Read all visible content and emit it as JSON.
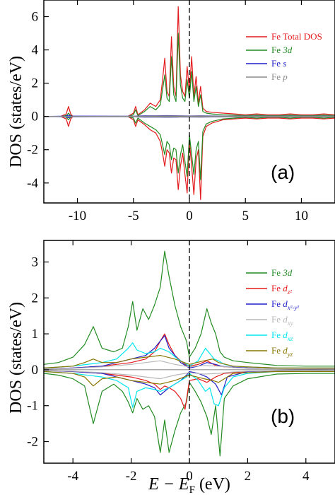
{
  "chart_data": [
    {
      "type": "line",
      "panel_label": "(a)",
      "ylabel": "DOS (states/eV)",
      "xlim": [
        -13,
        13
      ],
      "ylim": [
        -5.2,
        7.0
      ],
      "xticks": [
        -10,
        -5,
        0,
        5,
        10
      ],
      "xtick_labels": [
        "-10",
        "-5",
        "0",
        "5",
        "10"
      ],
      "yticks": [
        -4,
        -2,
        0,
        2,
        4,
        6
      ],
      "ytick_labels": [
        "-4",
        "-2",
        "0",
        "2",
        "4",
        "6"
      ],
      "fermi_line": 0,
      "legend_position": "top-right",
      "legend": [
        {
          "label": "Fe Total DOS",
          "color": "#e41a1c"
        },
        {
          "label_main": "Fe ",
          "label_italic": "3d",
          "color": "#228b22"
        },
        {
          "label_main": "Fe ",
          "label_italic": "s",
          "color": "#1f1fc8"
        },
        {
          "label_main": "Fe ",
          "label_italic": "p",
          "color": "#8c8c8c"
        }
      ],
      "series": [
        {
          "name": "Fe Total DOS",
          "color": "#e41a1c",
          "x": [
            -13,
            -11.5,
            -11.0,
            -10.8,
            -10.6,
            -10.4,
            -5.5,
            -5.0,
            -4.8,
            -4.6,
            -4.0,
            -3.5,
            -3.0,
            -2.6,
            -2.4,
            -2.2,
            -2.0,
            -1.8,
            -1.6,
            -1.4,
            -1.2,
            -1.0,
            -0.8,
            -0.6,
            -0.4,
            -0.2,
            0.0,
            0.2,
            0.4,
            0.6,
            0.8,
            1.0,
            1.2,
            1.5,
            2.0,
            3.0,
            4.0,
            5.0,
            6.0,
            7.0,
            8.0,
            9.0,
            10.0,
            11.0,
            12.0,
            13.0
          ],
          "y_up": [
            0,
            0,
            0.15,
            0.6,
            0.15,
            0,
            0,
            0.2,
            0.6,
            0.1,
            0.4,
            0.8,
            0.6,
            1.0,
            2.2,
            3.5,
            1.5,
            1.2,
            4.8,
            1.8,
            1.2,
            6.6,
            2.5,
            1.5,
            1.2,
            3.0,
            1.5,
            3.6,
            1.2,
            2.4,
            0.8,
            1.8,
            0.5,
            0.3,
            0.25,
            0.2,
            0.15,
            0.1,
            0.15,
            0.1,
            0.1,
            0.15,
            0.1,
            0.1,
            0.15,
            0.1
          ],
          "y_down": [
            0,
            0,
            -0.15,
            -0.6,
            -0.15,
            0,
            0,
            -0.2,
            -0.6,
            -0.2,
            -0.5,
            -0.8,
            -1.0,
            -1.5,
            -2.2,
            -3.0,
            -2.0,
            -2.2,
            -3.4,
            -2.5,
            -2.6,
            -4.4,
            -3.0,
            -2.2,
            -3.5,
            -4.6,
            -1.5,
            -3.0,
            -4.7,
            -2.6,
            -2.0,
            -5.0,
            -1.2,
            -0.6,
            -0.4,
            -0.2,
            -0.15,
            -0.1,
            -0.15,
            -0.1,
            -0.1,
            -0.15,
            -0.1,
            -0.1,
            -0.15,
            -0.1
          ]
        },
        {
          "name_main": "Fe ",
          "name_italic": "3d",
          "color": "#228b22",
          "x": [
            -13,
            -11.5,
            -11.0,
            -10.8,
            -10.6,
            -10.4,
            -5.5,
            -5.0,
            -4.8,
            -4.6,
            -4.0,
            -3.5,
            -3.0,
            -2.6,
            -2.4,
            -2.2,
            -2.0,
            -1.8,
            -1.6,
            -1.4,
            -1.2,
            -1.0,
            -0.8,
            -0.6,
            -0.4,
            -0.2,
            0.0,
            0.2,
            0.4,
            0.6,
            0.8,
            1.0,
            1.2,
            1.5,
            2.0,
            3.0,
            4.0,
            5.0,
            6.0,
            7.0,
            8.0,
            9.0,
            10.0,
            11.0,
            12.0,
            13.0
          ],
          "y_up": [
            0,
            0,
            0.05,
            0.2,
            0.05,
            0,
            0,
            0.1,
            0.4,
            0.05,
            0.3,
            0.6,
            0.4,
            0.7,
            1.6,
            2.5,
            1.1,
            0.9,
            3.6,
            1.3,
            0.9,
            5.0,
            1.9,
            1.1,
            0.9,
            2.2,
            1.1,
            2.7,
            0.9,
            1.8,
            0.6,
            1.3,
            0.3,
            0.2,
            0.15,
            0.1,
            0.08,
            0.05,
            0.08,
            0.05,
            0.05,
            0.08,
            0.05,
            0.05,
            0.08,
            0.05
          ],
          "y_down": [
            0,
            0,
            -0.05,
            -0.2,
            -0.05,
            0,
            0,
            -0.1,
            -0.4,
            -0.1,
            -0.4,
            -0.6,
            -0.8,
            -1.1,
            -1.7,
            -2.3,
            -1.5,
            -1.7,
            -2.6,
            -1.9,
            -2.0,
            -3.4,
            -2.3,
            -1.7,
            -2.7,
            -3.6,
            -1.1,
            -2.3,
            -3.5,
            -2.0,
            -1.5,
            -3.8,
            -0.9,
            -0.45,
            -0.3,
            -0.15,
            -0.1,
            -0.05,
            -0.1,
            -0.05,
            -0.05,
            -0.1,
            -0.05,
            -0.05,
            -0.1,
            -0.05
          ]
        },
        {
          "name_main": "Fe ",
          "name_italic": "s",
          "color": "#1f1fc8",
          "x": [
            -13,
            -11.0,
            -10.8,
            -10.6,
            -5.0,
            -4.5,
            -4.0,
            -3.0,
            -2.0,
            -1.0,
            0.0,
            1.0,
            2.0,
            4.0,
            8.0,
            13.0
          ],
          "y_up": [
            0,
            0.02,
            0.08,
            0.02,
            0.01,
            0.03,
            0.04,
            0.04,
            0.05,
            0.04,
            0.03,
            0.04,
            0.03,
            0.02,
            0.02,
            0.02
          ],
          "y_down": [
            0,
            -0.02,
            -0.08,
            -0.02,
            -0.01,
            -0.03,
            -0.04,
            -0.04,
            -0.05,
            -0.04,
            -0.03,
            -0.04,
            -0.03,
            -0.02,
            -0.02,
            -0.02
          ]
        },
        {
          "name_main": "Fe ",
          "name_italic": "p",
          "color": "#8c8c8c",
          "x": [
            -13,
            -5.0,
            -4.0,
            -3.0,
            -2.0,
            -1.0,
            0.0,
            1.0,
            2.0,
            4.0,
            8.0,
            13.0
          ],
          "y_up": [
            0,
            0.01,
            0.02,
            0.03,
            0.03,
            0.03,
            0.02,
            0.03,
            0.02,
            0.02,
            0.02,
            0.02
          ],
          "y_down": [
            0,
            -0.01,
            -0.02,
            -0.03,
            -0.03,
            -0.03,
            -0.02,
            -0.03,
            -0.02,
            -0.02,
            -0.02,
            -0.02
          ]
        }
      ]
    },
    {
      "type": "line",
      "panel_label": "(b)",
      "ylabel": "DOS (states/eV)",
      "xlabel_main": "E − E",
      "xlabel_sub": "F",
      "xlabel_unit": " (eV)",
      "xlim": [
        -5,
        5
      ],
      "ylim": [
        -2.6,
        3.6
      ],
      "xticks": [
        -4,
        -2,
        0,
        2,
        4
      ],
      "xtick_labels": [
        "-4",
        "-2",
        "0",
        "2",
        "4"
      ],
      "yticks": [
        -2,
        -1,
        0,
        1,
        2,
        3
      ],
      "ytick_labels": [
        "-2",
        "-1",
        "0",
        "1",
        "2",
        "3"
      ],
      "fermi_line": 0,
      "legend_position": "top-right",
      "legend": [
        {
          "label_main": "Fe ",
          "label_italic": "3d",
          "color": "#228b22"
        },
        {
          "label_main": "Fe ",
          "label_italic": "d",
          "label_sub": "z²",
          "color": "#e41a1c"
        },
        {
          "label_main": "Fe ",
          "label_italic": "d",
          "label_sub": "x²-y²",
          "color": "#1f1fc8"
        },
        {
          "label_main": "Fe ",
          "label_italic": "d",
          "label_sub": "xy",
          "color": "#b8b8b8"
        },
        {
          "label_main": "Fe ",
          "label_italic": "d",
          "label_sub": "xz",
          "color": "#00e5ee"
        },
        {
          "label_main": "Fe ",
          "label_italic": "d",
          "label_sub": "yz",
          "color": "#8b7500"
        }
      ],
      "series": [
        {
          "name_main": "Fe ",
          "name_italic": "3d",
          "color": "#228b22",
          "x": [
            -5.0,
            -4.5,
            -4.0,
            -3.6,
            -3.3,
            -3.0,
            -2.6,
            -2.3,
            -2.1,
            -1.95,
            -1.8,
            -1.6,
            -1.4,
            -1.2,
            -1.0,
            -0.85,
            -0.7,
            -0.5,
            -0.3,
            -0.1,
            0.0,
            0.2,
            0.4,
            0.6,
            0.75,
            0.9,
            1.05,
            1.2,
            1.5,
            2.0,
            3.0,
            4.0,
            5.0
          ],
          "y_up": [
            0.15,
            0.2,
            0.35,
            0.7,
            1.2,
            0.6,
            0.5,
            0.6,
            1.2,
            1.9,
            1.1,
            1.7,
            1.4,
            1.8,
            2.3,
            3.3,
            2.6,
            1.8,
            1.2,
            0.8,
            0.35,
            0.6,
            1.0,
            1.7,
            1.3,
            1.0,
            0.5,
            0.35,
            0.25,
            0.2,
            0.12,
            0.1,
            0.1
          ],
          "y_down": [
            -0.1,
            -0.15,
            -0.25,
            -0.45,
            -1.5,
            -0.6,
            -0.4,
            -0.6,
            -0.9,
            -1.2,
            -0.8,
            -1.1,
            -1.0,
            -1.3,
            -2.3,
            -1.4,
            -2.3,
            -1.7,
            -1.2,
            -0.9,
            -0.35,
            -0.6,
            -0.9,
            -1.3,
            -1.8,
            -1.0,
            -2.4,
            -0.8,
            -0.45,
            -0.25,
            -0.12,
            -0.1,
            -0.1
          ]
        },
        {
          "name_main": "Fe ",
          "name_italic": "d",
          "name_sub": "z²",
          "color": "#e41a1c",
          "x": [
            -5.0,
            -4.0,
            -3.0,
            -2.5,
            -2.0,
            -1.5,
            -1.2,
            -1.0,
            -0.85,
            -0.7,
            -0.5,
            -0.3,
            -0.15,
            0.0,
            0.3,
            0.6,
            0.9,
            1.2,
            2.0,
            3.0,
            5.0
          ],
          "y_up": [
            0.02,
            0.05,
            0.1,
            0.15,
            0.2,
            0.3,
            0.5,
            0.8,
            1.0,
            0.7,
            0.4,
            0.25,
            0.15,
            0.1,
            0.15,
            0.25,
            0.12,
            0.08,
            0.05,
            0.03,
            0.02
          ],
          "y_down": [
            -0.02,
            -0.05,
            -0.1,
            -0.15,
            -0.2,
            -0.3,
            -0.4,
            -0.55,
            -0.45,
            -0.5,
            -0.6,
            -0.8,
            -1.1,
            -0.3,
            -0.25,
            -0.35,
            -0.2,
            -0.1,
            -0.05,
            -0.03,
            -0.02
          ]
        },
        {
          "name_main": "Fe ",
          "name_italic": "d",
          "name_sub": "x²-y²",
          "color": "#1f1fc8",
          "x": [
            -5.0,
            -4.0,
            -3.0,
            -2.5,
            -2.0,
            -1.5,
            -1.2,
            -1.0,
            -0.85,
            -0.7,
            -0.5,
            -0.3,
            -0.1,
            0.0,
            0.3,
            0.6,
            0.9,
            1.1,
            1.3,
            2.0,
            3.0,
            5.0
          ],
          "y_up": [
            0.02,
            0.05,
            0.1,
            0.2,
            0.3,
            0.4,
            0.6,
            0.8,
            0.95,
            0.6,
            0.4,
            0.2,
            0.1,
            0.05,
            0.1,
            0.2,
            0.15,
            0.1,
            0.08,
            0.05,
            0.03,
            0.02
          ],
          "y_down": [
            -0.02,
            -0.05,
            -0.1,
            -0.2,
            -0.3,
            -0.4,
            -0.5,
            -0.7,
            -0.6,
            -0.5,
            -0.4,
            -0.3,
            -0.15,
            -0.05,
            -0.1,
            -0.2,
            -0.4,
            -0.7,
            -0.2,
            -0.05,
            -0.03,
            -0.02
          ]
        },
        {
          "name_main": "Fe ",
          "name_italic": "d",
          "name_sub": "xy",
          "color": "#b8b8b8",
          "x": [
            -5.0,
            -4.0,
            -3.0,
            -2.0,
            -1.5,
            -1.0,
            -0.5,
            0.0,
            0.5,
            1.0,
            1.5,
            2.0,
            3.0,
            5.0
          ],
          "y_up": [
            0.02,
            0.04,
            0.08,
            0.15,
            0.2,
            0.25,
            0.15,
            0.08,
            0.12,
            0.1,
            0.06,
            0.04,
            0.03,
            0.02
          ],
          "y_down": [
            -0.02,
            -0.04,
            -0.08,
            -0.15,
            -0.2,
            -0.25,
            -0.15,
            -0.08,
            -0.12,
            -0.1,
            -0.06,
            -0.04,
            -0.03,
            -0.02
          ]
        },
        {
          "name_main": "Fe ",
          "name_italic": "d",
          "name_sub": "xz",
          "color": "#00e5ee",
          "x": [
            -5.0,
            -4.0,
            -3.0,
            -2.5,
            -2.1,
            -1.95,
            -1.8,
            -1.5,
            -1.2,
            -1.0,
            -0.7,
            -0.4,
            -0.1,
            0.0,
            0.3,
            0.55,
            0.7,
            0.85,
            1.0,
            1.2,
            1.5,
            2.0,
            3.0,
            5.0
          ],
          "y_up": [
            0.05,
            0.1,
            0.2,
            0.3,
            0.6,
            0.75,
            0.55,
            0.45,
            0.5,
            0.6,
            0.5,
            0.3,
            0.15,
            0.1,
            0.25,
            0.6,
            0.45,
            0.3,
            0.25,
            0.15,
            0.1,
            0.08,
            0.05,
            0.05
          ],
          "y_down": [
            -0.05,
            -0.1,
            -0.2,
            -0.3,
            -0.5,
            -1.05,
            -0.6,
            -0.5,
            -0.55,
            -0.6,
            -0.5,
            -0.35,
            -0.2,
            -0.1,
            -0.3,
            -0.6,
            -0.5,
            -0.95,
            -1.0,
            -0.5,
            -0.2,
            -0.1,
            -0.05,
            -0.05
          ]
        },
        {
          "name_main": "Fe ",
          "name_italic": "d",
          "name_sub": "yz",
          "color": "#8b7500",
          "x": [
            -5.0,
            -4.0,
            -3.6,
            -3.3,
            -3.0,
            -2.5,
            -2.0,
            -1.5,
            -1.0,
            -0.5,
            0.0,
            0.5,
            0.8,
            1.0,
            1.5,
            2.0,
            3.0,
            5.0
          ],
          "y_up": [
            0.05,
            0.1,
            0.2,
            0.3,
            0.2,
            0.2,
            0.3,
            0.35,
            0.4,
            0.3,
            0.15,
            0.25,
            0.3,
            0.2,
            0.1,
            0.08,
            0.05,
            0.05
          ],
          "y_down": [
            -0.05,
            -0.1,
            -0.2,
            -0.45,
            -0.25,
            -0.2,
            -0.3,
            -0.35,
            -0.4,
            -0.3,
            -0.15,
            -0.25,
            -0.3,
            -0.35,
            -0.1,
            -0.08,
            -0.05,
            -0.05
          ]
        }
      ]
    }
  ]
}
